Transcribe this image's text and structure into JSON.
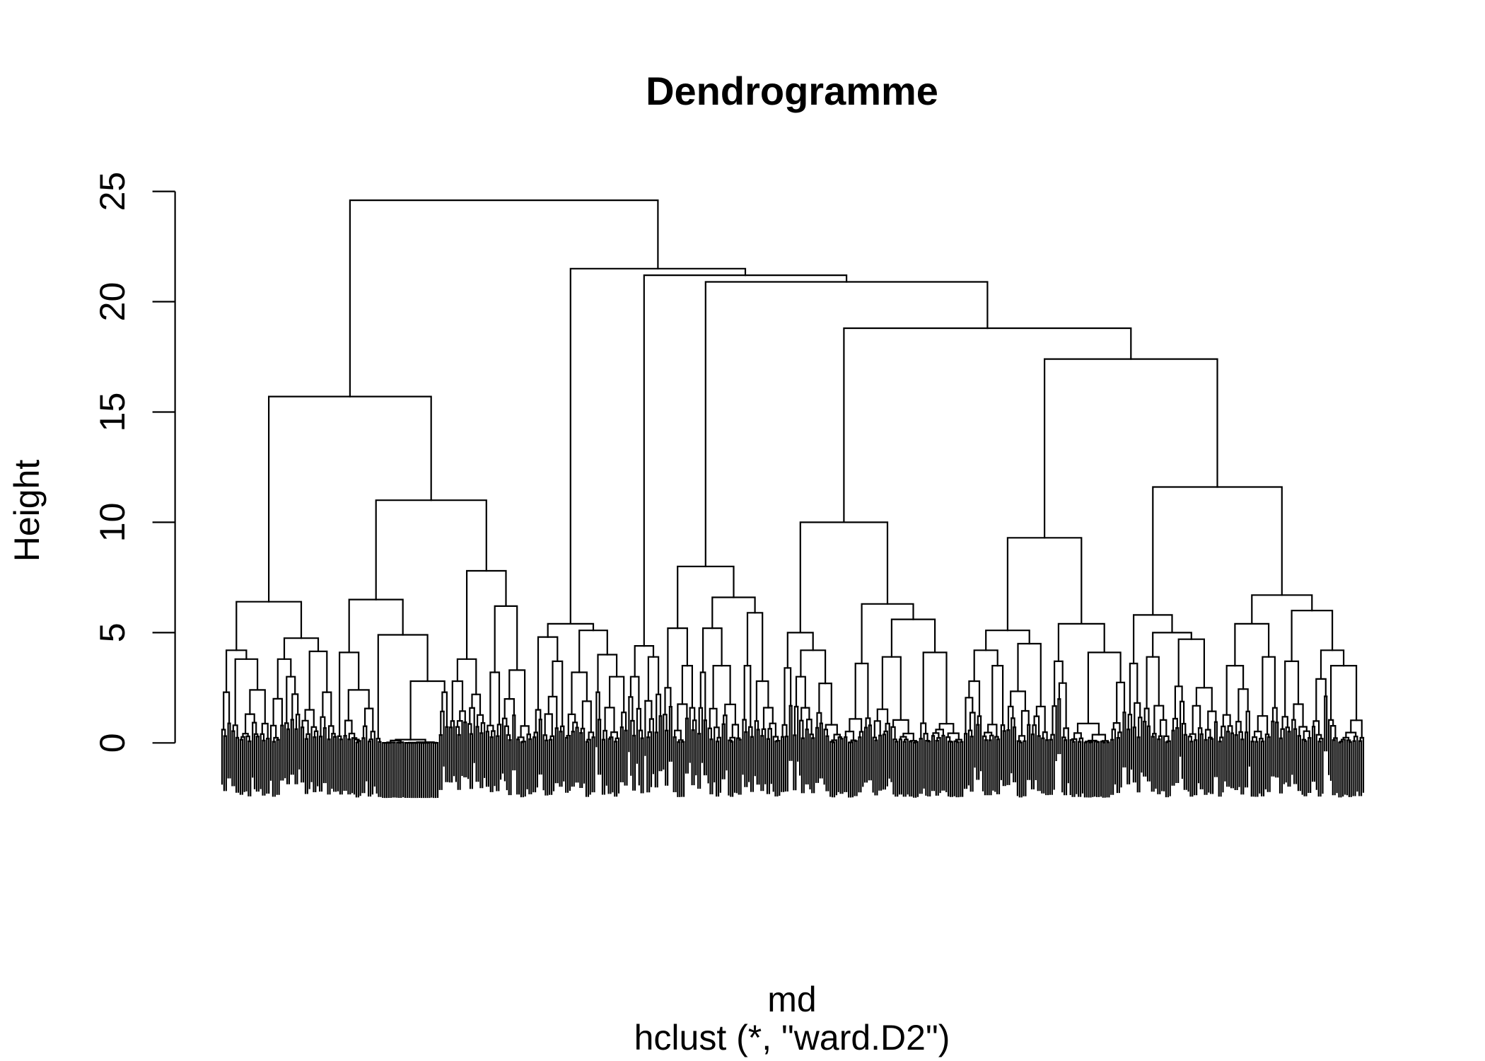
{
  "chart_data": {
    "type": "dendrogram",
    "title": "Dendrogramme",
    "xlabel": "md",
    "subtitle": "hclust (*, \"ward.D2\")",
    "ylabel": "Height",
    "ylim": [
      0,
      25
    ],
    "yticks": [
      0,
      5,
      10,
      15,
      20,
      25
    ],
    "yticklabels": [
      "0",
      "5",
      "10",
      "15",
      "20",
      "25"
    ],
    "grid": false,
    "colors": {
      "line": "#000000",
      "text": "#000000",
      "background": "#FFFFFF"
    },
    "tree": {
      "h": 24.6,
      "c": [
        {
          "h": 15.7,
          "c": [
            {
              "h": 6.4,
              "c": [
                {
                  "h": 4.2,
                  "c": [
                    {
                      "h": 2.3,
                      "n": 5
                    },
                    {
                      "h": 3.8,
                      "c": [
                        {
                          "h": 0.8,
                          "n": 4
                        },
                        {
                          "h": 2.4,
                          "n": 15
                        }
                      ]
                    }
                  ]
                },
                {
                  "h": 4.75,
                  "c": [
                    {
                      "h": 3.8,
                      "c": [
                        {
                          "h": 2.0,
                          "n": 7
                        },
                        {
                          "h": 3.0,
                          "n": 8
                        }
                      ]
                    },
                    {
                      "h": 4.15,
                      "c": [
                        {
                          "h": 1.5,
                          "n": 9
                        },
                        {
                          "h": 2.3,
                          "n": 9
                        }
                      ]
                    }
                  ]
                }
              ]
            },
            {
              "h": 11.0,
              "c": [
                {
                  "h": 6.5,
                  "c": [
                    {
                      "h": 4.1,
                      "c": [
                        {
                          "h": 0.3,
                          "n": 3
                        },
                        {
                          "h": 2.4,
                          "n": 16
                        }
                      ]
                    },
                    {
                      "h": 4.9,
                      "c": [
                        {
                          "h": 0.2,
                          "n": 3
                        },
                        {
                          "h": 2.8,
                          "c": [
                            {
                              "h": 0.15,
                              "n": 28
                            },
                            {
                              "h": 2.3,
                              "n": 5
                            }
                          ]
                        }
                      ]
                    }
                  ]
                },
                {
                  "h": 7.8,
                  "c": [
                    {
                      "h": 3.8,
                      "c": [
                        {
                          "h": 2.8,
                          "n": 9
                        },
                        {
                          "h": 2.2,
                          "n": 9
                        }
                      ]
                    },
                    {
                      "h": 6.2,
                      "c": [
                        {
                          "h": 3.2,
                          "n": 8
                        },
                        {
                          "h": 3.3,
                          "n": 15
                        }
                      ]
                    }
                  ]
                }
              ]
            }
          ]
        },
        {
          "h": 21.5,
          "c": [
            {
              "h": 5.4,
              "c": [
                {
                  "h": 4.8,
                  "c": [
                    {
                      "h": 1.5,
                      "n": 5
                    },
                    {
                      "h": 3.7,
                      "n": 11
                    }
                  ]
                },
                {
                  "h": 5.1,
                  "c": [
                    {
                      "h": 3.2,
                      "n": 15
                    },
                    {
                      "h": 4.0,
                      "c": [
                        {
                          "h": 2.3,
                          "n": 3
                        },
                        {
                          "h": 3.0,
                          "n": 13
                        }
                      ]
                    }
                  ]
                }
              ]
            },
            {
              "h": 21.2,
              "c": [
                {
                  "h": 4.4,
                  "c": [
                    {
                      "h": 3.0,
                      "n": 8
                    },
                    {
                      "h": 3.9,
                      "n": 9
                    }
                  ]
                },
                {
                  "h": 20.9,
                  "c": [
                    {
                      "h": 8.0,
                      "c": [
                        {
                          "h": 5.2,
                          "c": [
                            {
                              "h": 2.5,
                              "n": 5
                            },
                            {
                              "h": 3.5,
                              "n": 12
                            }
                          ]
                        },
                        {
                          "h": 6.6,
                          "c": [
                            {
                              "h": 5.2,
                              "c": [
                                {
                                  "h": 3.2,
                                  "n": 5
                                },
                                {
                                  "h": 3.5,
                                  "n": 17
                                }
                              ]
                            },
                            {
                              "h": 5.9,
                              "c": [
                                {
                                  "h": 3.5,
                                  "n": 6
                                },
                                {
                                  "h": 2.8,
                                  "n": 13
                                }
                              ]
                            }
                          ]
                        }
                      ]
                    },
                    {
                      "h": 18.8,
                      "c": [
                        {
                          "h": 10.0,
                          "c": [
                            {
                              "h": 5.0,
                              "c": [
                                {
                                  "h": 3.4,
                                  "n": 6
                                },
                                {
                                  "h": 4.2,
                                  "c": [
                                    {
                                      "h": 3.0,
                                      "n": 11
                                    },
                                    {
                                      "h": 2.7,
                                      "n": 14
                                    }
                                  ]
                                }
                              ]
                            },
                            {
                              "h": 6.3,
                              "c": [
                                {
                                  "h": 3.6,
                                  "n": 14
                                },
                                {
                                  "h": 5.6,
                                  "c": [
                                    {
                                      "h": 3.9,
                                      "n": 23
                                    },
                                    {
                                      "h": 4.1,
                                      "n": 22
                                    }
                                  ]
                                }
                              ]
                            }
                          ]
                        },
                        {
                          "h": 17.4,
                          "c": [
                            {
                              "h": 9.3,
                              "c": [
                                {
                                  "h": 5.1,
                                  "c": [
                                    {
                                      "h": 4.2,
                                      "c": [
                                        {
                                          "h": 2.8,
                                          "n": 9
                                        },
                                        {
                                          "h": 3.5,
                                          "n": 12
                                        }
                                      ]
                                    },
                                    {
                                      "h": 4.5,
                                      "n": 21
                                    }
                                  ]
                                },
                                {
                                  "h": 5.4,
                                  "c": [
                                    {
                                      "h": 3.7,
                                      "n": 10
                                    },
                                    {
                                      "h": 4.1,
                                      "n": 28
                                    }
                                  ]
                                }
                              ]
                            },
                            {
                              "h": 11.6,
                              "c": [
                                {
                                  "h": 5.8,
                                  "c": [
                                    {
                                      "h": 3.6,
                                      "n": 8
                                    },
                                    {
                                      "h": 5.0,
                                      "c": [
                                        {
                                          "h": 3.9,
                                          "n": 14
                                        },
                                        {
                                          "h": 4.7,
                                          "n": 23
                                        }
                                      ]
                                    }
                                  ]
                                },
                                {
                                  "h": 6.7,
                                  "c": [
                                    {
                                      "h": 5.4,
                                      "c": [
                                        {
                                          "h": 3.5,
                                          "n": 16
                                        },
                                        {
                                          "h": 3.9,
                                          "n": 14
                                        }
                                      ]
                                    },
                                    {
                                      "h": 6.0,
                                      "c": [
                                        {
                                          "h": 3.7,
                                          "n": 16
                                        },
                                        {
                                          "h": 4.2,
                                          "c": [
                                            {
                                              "h": 2.9,
                                              "n": 8
                                            },
                                            {
                                              "h": 3.5,
                                              "n": 18
                                            }
                                          ]
                                        }
                                      ]
                                    }
                                  ]
                                }
                              ]
                            }
                          ]
                        }
                      ]
                    }
                  ]
                }
              ]
            }
          ]
        }
      ]
    }
  }
}
